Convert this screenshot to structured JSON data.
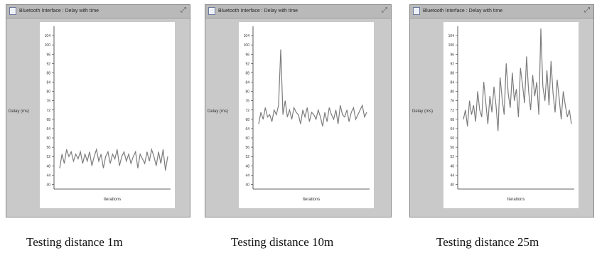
{
  "captions": [
    "Testing distance 1m",
    "Testing distance 10m",
    "Testing distance 25m"
  ],
  "colors": {
    "line": "#7c7c7c",
    "window_bg": "#c9c9c9",
    "plot_bg": "#ffffff"
  },
  "panels": [
    {
      "window_title": "Bluetooth Interface : Delay with time",
      "ylabel": "Delay (ms)",
      "xlabel": "Iterations",
      "icons": [
        "window-icon",
        "maximize-icon"
      ]
    },
    {
      "window_title": "Bluetooth Interface : Delay with time",
      "ylabel": "Delay (ms)",
      "xlabel": "Iterations",
      "icons": [
        "window-icon",
        "maximize-icon"
      ]
    },
    {
      "window_title": "Bluetooth Interface : Delay with time",
      "ylabel": "Delay (ms)",
      "xlabel": "Iterations",
      "icons": [
        "window-icon",
        "maximize-icon"
      ]
    }
  ],
  "chart_data": [
    {
      "type": "line",
      "title": "Bluetooth Interface : Delay with time",
      "xlabel": "Iterations",
      "ylabel": "Delay (ms)",
      "ylim": [
        38,
        108
      ],
      "yticks": [
        40,
        44,
        48,
        52,
        56,
        60,
        64,
        68,
        72,
        76,
        80,
        84,
        88,
        92,
        96,
        100,
        104
      ],
      "ytick_labels": [
        "40",
        "44",
        "48",
        "52",
        "56",
        "60",
        "64",
        "68",
        "72",
        "76",
        "80",
        "84",
        "88",
        "92",
        "96",
        "100",
        "104"
      ],
      "grid": false,
      "series": [
        {
          "values": [
            47,
            53,
            49,
            55,
            52,
            54,
            50,
            53,
            51,
            54,
            49,
            53,
            50,
            54,
            48,
            52,
            55,
            50,
            53,
            47,
            52,
            54,
            49,
            53,
            51,
            55,
            48,
            52,
            54,
            50,
            53,
            49,
            52,
            54,
            47,
            53,
            51,
            49,
            54,
            50,
            55,
            52,
            48,
            54,
            49,
            55,
            46,
            52
          ]
        }
      ]
    },
    {
      "type": "line",
      "title": "Bluetooth Interface : Delay with time",
      "xlabel": "Iterations",
      "ylabel": "Delay (ms)",
      "ylim": [
        38,
        108
      ],
      "yticks": [
        40,
        44,
        48,
        52,
        56,
        60,
        64,
        68,
        72,
        76,
        80,
        84,
        88,
        92,
        96,
        100,
        104
      ],
      "ytick_labels": [
        "40",
        "44",
        "48",
        "52",
        "56",
        "60",
        "64",
        "68",
        "72",
        "76",
        "80",
        "84",
        "88",
        "92",
        "96",
        "100",
        "104"
      ],
      "grid": false,
      "series": [
        {
          "values": [
            66,
            71,
            68,
            73,
            69,
            70,
            67,
            72,
            70,
            74,
            98,
            70,
            76,
            69,
            72,
            68,
            73,
            71,
            70,
            66,
            72,
            69,
            73,
            67,
            71,
            70,
            68,
            72,
            69,
            65,
            71,
            67,
            73,
            70,
            68,
            72,
            66,
            74,
            70,
            69,
            72,
            67,
            71,
            73,
            68,
            70,
            72,
            74,
            69,
            71
          ]
        }
      ]
    },
    {
      "type": "line",
      "title": "Bluetooth Interface : Delay with time",
      "xlabel": "Iterations",
      "ylabel": "Delay (ms)",
      "ylim": [
        38,
        108
      ],
      "yticks": [
        40,
        44,
        48,
        52,
        56,
        60,
        64,
        68,
        72,
        76,
        80,
        84,
        88,
        92,
        96,
        100,
        104
      ],
      "ytick_labels": [
        "40",
        "44",
        "48",
        "52",
        "56",
        "60",
        "64",
        "68",
        "72",
        "76",
        "80",
        "84",
        "88",
        "92",
        "96",
        "100",
        "104"
      ],
      "grid": false,
      "series": [
        {
          "values": [
            68,
            72,
            65,
            76,
            70,
            74,
            67,
            80,
            72,
            69,
            84,
            75,
            66,
            78,
            71,
            82,
            74,
            63,
            86,
            77,
            70,
            92,
            79,
            73,
            88,
            76,
            81,
            69,
            90,
            83,
            75,
            95,
            80,
            72,
            87,
            78,
            84,
            70,
            107,
            82,
            76,
            89,
            74,
            93,
            79,
            71,
            85,
            77,
            68,
            80,
            74,
            69,
            72,
            66
          ]
        }
      ]
    }
  ]
}
